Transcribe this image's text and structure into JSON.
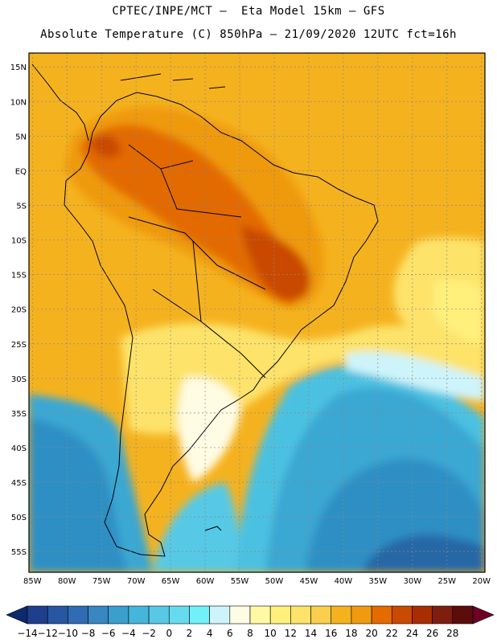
{
  "header": {
    "line1": "CPTEC/INPE/MCT –  Eta Model 15km – GFS",
    "line2": "Absolute Temperature (C) 850hPa – 21/09/2020 12UTC fct=16h"
  },
  "map": {
    "lat_labels": [
      "15N",
      "10N",
      "5N",
      "EQ",
      "5S",
      "10S",
      "15S",
      "20S",
      "25S",
      "30S",
      "35S",
      "40S",
      "45S",
      "50S",
      "55S"
    ],
    "lon_labels": [
      "85W",
      "80W",
      "75W",
      "70W",
      "65W",
      "60W",
      "55W",
      "50W",
      "45W",
      "40W",
      "35W",
      "30W",
      "25W",
      "20W"
    ],
    "lat_values": [
      15,
      10,
      5,
      0,
      -5,
      -10,
      -15,
      -20,
      -25,
      -30,
      -35,
      -40,
      -45,
      -50,
      -55
    ],
    "lon_values": [
      -85,
      -80,
      -75,
      -70,
      -65,
      -60,
      -55,
      -50,
      -45,
      -40,
      -35,
      -30,
      -25,
      -20
    ],
    "extent": {
      "lon_min": -85.5,
      "lon_max": -19.5,
      "lat_min": -58.0,
      "lat_max": 17.0
    }
  },
  "colorbar": {
    "labels": [
      "-14",
      "-12",
      "-10",
      "-8",
      "-6",
      "-4",
      "-2",
      "0",
      "2",
      "4",
      "6",
      "8",
      "10",
      "12",
      "14",
      "16",
      "18",
      "20",
      "22",
      "24",
      "26",
      "28"
    ],
    "colors": [
      "#0d2a6e",
      "#1f3f8d",
      "#2756a3",
      "#2f6cb3",
      "#3787c0",
      "#3a9fcd",
      "#45b6db",
      "#57c9e6",
      "#66dbef",
      "#72f0f8",
      "#cdf4fa",
      "#fffce4",
      "#fff9a6",
      "#fff07c",
      "#fde36a",
      "#f9cf4d",
      "#f5b21f",
      "#ef9a10",
      "#e36b00",
      "#c94a00",
      "#a82d00",
      "#7d1e0e",
      "#5a0d0a",
      "#6e0026"
    ]
  }
}
